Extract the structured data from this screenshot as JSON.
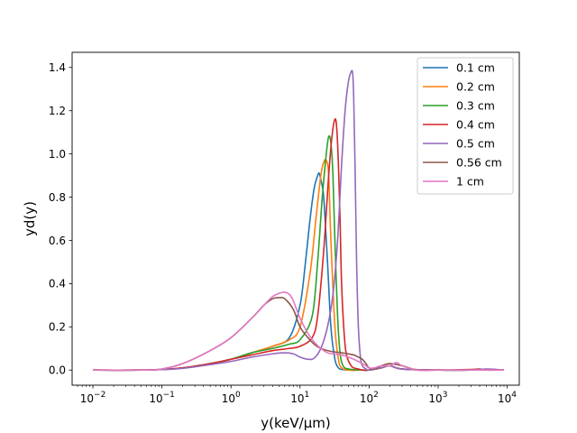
{
  "chart_data": {
    "type": "line",
    "title": "",
    "xlabel": "y(keV/µm)",
    "ylabel": "yd(y)",
    "xscale": "log",
    "xlim": [
      0.005,
      15000
    ],
    "ylim": [
      -0.07,
      1.47
    ],
    "grid": false,
    "legend_position": "top-right",
    "xticks": [
      {
        "value": 0.01,
        "base": "10",
        "exp": "−2"
      },
      {
        "value": 0.1,
        "base": "10",
        "exp": "−1"
      },
      {
        "value": 1,
        "base": "10",
        "exp": "0"
      },
      {
        "value": 10,
        "base": "10",
        "exp": "1"
      },
      {
        "value": 100,
        "base": "10",
        "exp": "2"
      },
      {
        "value": 1000,
        "base": "10",
        "exp": "3"
      },
      {
        "value": 10000,
        "base": "10",
        "exp": "4"
      }
    ],
    "yticks": [
      {
        "value": 0.0,
        "label": "0.0"
      },
      {
        "value": 0.2,
        "label": "0.2"
      },
      {
        "value": 0.4,
        "label": "0.4"
      },
      {
        "value": 0.6,
        "label": "0.6"
      },
      {
        "value": 0.8,
        "label": "0.8"
      },
      {
        "value": 1.0,
        "label": "1.0"
      },
      {
        "value": 1.2,
        "label": "1.2"
      },
      {
        "value": 1.4,
        "label": "1.4"
      }
    ],
    "series": [
      {
        "name": "0.1 cm",
        "color": "#1f77b4",
        "x": [
          0.01,
          0.05,
          0.1,
          0.2,
          0.5,
          1,
          2,
          4,
          7,
          10,
          12,
          14,
          16,
          18,
          19,
          20,
          22,
          25,
          28,
          32,
          36,
          40,
          50,
          80,
          100,
          150,
          200,
          300,
          1000,
          3000,
          5000,
          9000
        ],
        "y": [
          0,
          0,
          0.003,
          0.01,
          0.03,
          0.05,
          0.08,
          0.11,
          0.15,
          0.3,
          0.5,
          0.7,
          0.84,
          0.9,
          0.91,
          0.88,
          0.8,
          0.5,
          0.2,
          0.05,
          0.01,
          0.003,
          0,
          0,
          0,
          0.01,
          0.02,
          0.005,
          0,
          0,
          0,
          0
        ]
      },
      {
        "name": "0.2 cm",
        "color": "#ff7f0e",
        "x": [
          0.01,
          0.05,
          0.1,
          0.2,
          0.5,
          1,
          2,
          4,
          7,
          10,
          14,
          17,
          20,
          22,
          24,
          26,
          28,
          32,
          36,
          40,
          50,
          80,
          100,
          150,
          200,
          300,
          1000,
          3000,
          5000,
          9000
        ],
        "y": [
          0,
          0,
          0.003,
          0.01,
          0.03,
          0.05,
          0.08,
          0.11,
          0.14,
          0.2,
          0.45,
          0.7,
          0.9,
          0.96,
          0.97,
          0.9,
          0.6,
          0.2,
          0.05,
          0.01,
          0,
          0,
          0,
          0.01,
          0.02,
          0.005,
          0,
          0,
          0,
          0
        ]
      },
      {
        "name": "0.3 cm",
        "color": "#2ca02c",
        "x": [
          0.01,
          0.05,
          0.1,
          0.2,
          0.5,
          1,
          2,
          4,
          7,
          10,
          15,
          18,
          21,
          24,
          26,
          28,
          30,
          32,
          35,
          38,
          42,
          50,
          80,
          100,
          150,
          200,
          300,
          1000,
          3000,
          5000,
          9000
        ],
        "y": [
          0,
          0,
          0.003,
          0.01,
          0.03,
          0.05,
          0.08,
          0.1,
          0.12,
          0.14,
          0.25,
          0.5,
          0.8,
          1.0,
          1.08,
          1.05,
          0.9,
          0.6,
          0.25,
          0.08,
          0.02,
          0.005,
          0,
          0,
          0.01,
          0.02,
          0.005,
          0,
          0,
          0,
          0
        ]
      },
      {
        "name": "0.4 cm",
        "color": "#d62728",
        "x": [
          0.01,
          0.05,
          0.1,
          0.2,
          0.5,
          1,
          2,
          4,
          7,
          10,
          15,
          18,
          22,
          26,
          29,
          32,
          34,
          36,
          38,
          40,
          44,
          48,
          55,
          60,
          70,
          80,
          100,
          150,
          200,
          300,
          1000,
          3000,
          4000,
          5000,
          9000
        ],
        "y": [
          0,
          0,
          0.003,
          0.01,
          0.03,
          0.05,
          0.07,
          0.09,
          0.1,
          0.11,
          0.15,
          0.25,
          0.55,
          0.9,
          1.08,
          1.16,
          1.12,
          0.95,
          0.7,
          0.4,
          0.15,
          0.06,
          0.02,
          0.01,
          0.005,
          0,
          0,
          0.01,
          0.02,
          0.005,
          0,
          0.003,
          0.005,
          0,
          0
        ]
      },
      {
        "name": "0.5 cm",
        "color": "#9467bd",
        "x": [
          0.01,
          0.05,
          0.1,
          0.2,
          0.5,
          1,
          2,
          4,
          6,
          8,
          10,
          13,
          16,
          20,
          25,
          30,
          35,
          40,
          45,
          50,
          55,
          58,
          60,
          63,
          66,
          70,
          75,
          80,
          90,
          100,
          150,
          200,
          300,
          1000,
          3000,
          5000,
          7000,
          9000
        ],
        "y": [
          0,
          0,
          0.002,
          0.008,
          0.025,
          0.04,
          0.06,
          0.075,
          0.08,
          0.075,
          0.06,
          0.05,
          0.055,
          0.1,
          0.2,
          0.35,
          0.6,
          0.95,
          1.2,
          1.33,
          1.38,
          1.37,
          1.25,
          0.9,
          0.5,
          0.2,
          0.06,
          0.02,
          0.005,
          0,
          0.01,
          0.02,
          0.005,
          0,
          0,
          0.005,
          0.003,
          0
        ]
      },
      {
        "name": "0.56 cm",
        "color": "#8c564b",
        "x": [
          0.01,
          0.05,
          0.1,
          0.2,
          0.5,
          1,
          2,
          3,
          4,
          5,
          6,
          8,
          10,
          13,
          16,
          20,
          25,
          30,
          40,
          50,
          60,
          70,
          80,
          90,
          100,
          120,
          150,
          200,
          300,
          500,
          1000,
          3000,
          5000,
          9000
        ],
        "y": [
          0,
          0,
          0.005,
          0.03,
          0.09,
          0.15,
          0.24,
          0.3,
          0.33,
          0.335,
          0.33,
          0.28,
          0.2,
          0.15,
          0.12,
          0.1,
          0.09,
          0.085,
          0.08,
          0.075,
          0.07,
          0.06,
          0.05,
          0.03,
          0.01,
          0.005,
          0.02,
          0.03,
          0.02,
          0,
          0,
          0,
          0,
          0
        ]
      },
      {
        "name": "1 cm",
        "color": "#e377c2",
        "x": [
          0.01,
          0.05,
          0.1,
          0.2,
          0.5,
          1,
          2,
          3,
          4,
          5,
          6,
          7,
          8,
          10,
          13,
          16,
          20,
          25,
          30,
          40,
          50,
          60,
          70,
          80,
          90,
          100,
          120,
          150,
          200,
          250,
          300,
          500,
          1000,
          3000,
          5000,
          9000
        ],
        "y": [
          0,
          0,
          0.005,
          0.03,
          0.09,
          0.15,
          0.24,
          0.3,
          0.34,
          0.355,
          0.36,
          0.35,
          0.32,
          0.24,
          0.17,
          0.13,
          0.1,
          0.08,
          0.075,
          0.07,
          0.06,
          0.05,
          0.04,
          0.03,
          0.02,
          0.01,
          0.01,
          0.02,
          0.02,
          0.035,
          0.02,
          0,
          0,
          0,
          0,
          0
        ]
      }
    ]
  }
}
